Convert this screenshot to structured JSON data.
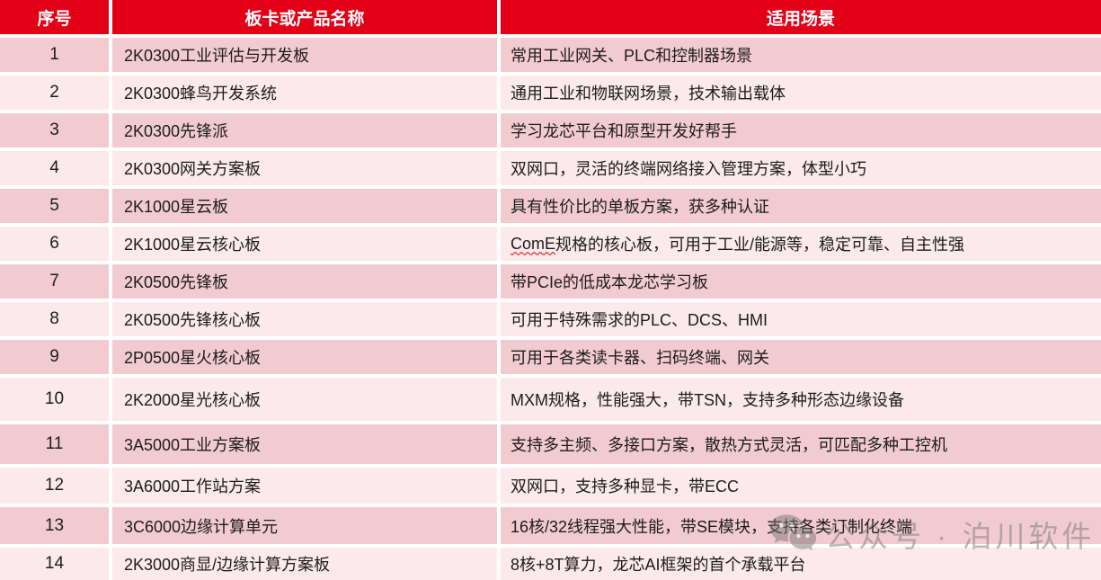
{
  "chart_data": {
    "type": "table",
    "columns": [
      "序号",
      "板卡或产品名称",
      "适用场景"
    ],
    "rows": [
      [
        "1",
        "2K0300工业评估与开发板",
        "常用工业网关、PLC和控制器场景"
      ],
      [
        "2",
        "2K0300蜂鸟开发系统",
        "通用工业和物联网场景，技术输出载体"
      ],
      [
        "3",
        "2K0300先锋派",
        "学习龙芯平台和原型开发好帮手"
      ],
      [
        "4",
        "2K0300网关方案板",
        "双网口，灵活的终端网络接入管理方案，体型小巧"
      ],
      [
        "5",
        "2K1000星云板",
        "具有性价比的单板方案，获多种认证"
      ],
      [
        "6",
        "2K1000星云核心板",
        "ComE规格的核心板，可用于工业/能源等，稳定可靠、自主性强"
      ],
      [
        "7",
        "2K0500先锋板",
        "带PCIe的低成本龙芯学习板"
      ],
      [
        "8",
        "2K0500先锋核心板",
        "可用于特殊需求的PLC、DCS、HMI"
      ],
      [
        "9",
        "2P0500星火核心板",
        "可用于各类读卡器、扫码终端、网关"
      ],
      [
        "10",
        "2K2000星光核心板",
        "MXM规格，性能强大，带TSN，支持多种形态边缘设备"
      ],
      [
        "11",
        "3A5000工业方案板",
        "支持多主频、多接口方案，散热方式灵活，可匹配多种工控机"
      ],
      [
        "12",
        "3A6000工作站方案",
        "双网口，支持多种显卡，带ECC"
      ],
      [
        "13",
        "3C6000边缘计算单元",
        "16核/32线程强大性能，带SE模块，支持各类订制化终端"
      ],
      [
        "14",
        "2K3000商显/边缘计算方案板",
        "8核+8T算力，龙芯AI框架的首个承载平台"
      ]
    ]
  },
  "spellcheck": {
    "row_index": 5,
    "token": "ComE"
  },
  "watermark": {
    "icon": "wechat-icon",
    "text": "公众号 · 泊川软件"
  },
  "colors": {
    "header_bg": "#e30017",
    "row_odd": "#f2cbd0",
    "row_even": "#fbe9ec",
    "text": "#1c1c1c",
    "header_text": "#ffffff",
    "watermark": "#777777",
    "spellcheck_underline": "#e00000"
  }
}
